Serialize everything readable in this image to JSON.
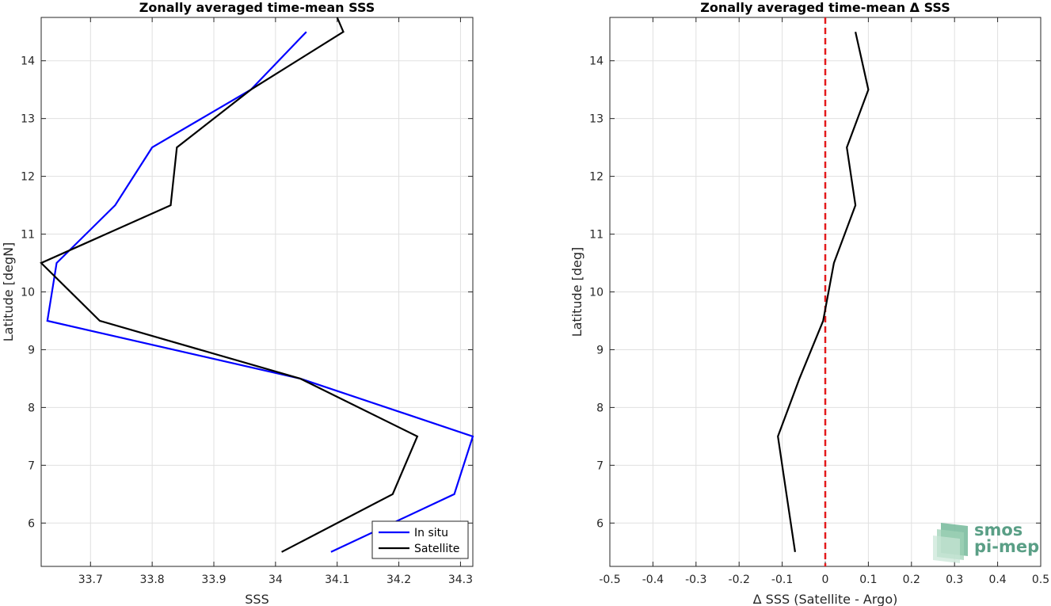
{
  "chart_data": [
    {
      "type": "line",
      "title": "Zonally averaged time-mean SSS",
      "xlabel": "SSS",
      "ylabel": "Latitude [degN]",
      "xlim": [
        33.62,
        34.32
      ],
      "ylim": [
        5.25,
        14.75
      ],
      "xticks": [
        33.7,
        33.8,
        33.9,
        34.0,
        34.1,
        34.2,
        34.3
      ],
      "xtick_labels": [
        "33.7",
        "33.8",
        "33.9",
        "34",
        "34.1",
        "34.2",
        "34.3"
      ],
      "yticks": [
        6,
        7,
        8,
        9,
        10,
        11,
        12,
        13,
        14
      ],
      "ytick_labels": [
        "6",
        "7",
        "8",
        "9",
        "10",
        "11",
        "12",
        "13",
        "14"
      ],
      "grid": true,
      "legend_position": "bottom-right",
      "series": [
        {
          "name": "In situ",
          "color": "#0000ff",
          "points": [
            [
              34.09,
              5.5
            ],
            [
              34.29,
              6.5
            ],
            [
              34.32,
              7.5
            ],
            [
              34.04,
              8.5
            ],
            [
              33.63,
              9.5
            ],
            [
              33.645,
              10.5
            ],
            [
              33.74,
              11.5
            ],
            [
              33.8,
              12.5
            ],
            [
              33.96,
              13.5
            ],
            [
              34.05,
              14.5
            ]
          ]
        },
        {
          "name": "Satellite",
          "color": "#000000",
          "points": [
            [
              34.01,
              5.5
            ],
            [
              34.19,
              6.5
            ],
            [
              34.23,
              7.5
            ],
            [
              34.04,
              8.5
            ],
            [
              33.715,
              9.5
            ],
            [
              33.62,
              10.5
            ],
            [
              33.83,
              11.5
            ],
            [
              33.84,
              12.5
            ],
            [
              33.96,
              13.5
            ],
            [
              34.11,
              14.5
            ],
            [
              34.1,
              14.75
            ]
          ]
        }
      ]
    },
    {
      "type": "line",
      "title": "Zonally averaged time-mean Δ SSS",
      "xlabel": "Δ SSS (Satellite - Argo)",
      "ylabel": "Latitude [deg]",
      "xlim": [
        -0.5,
        0.5
      ],
      "ylim": [
        5.25,
        14.75
      ],
      "xticks": [
        -0.5,
        -0.4,
        -0.3,
        -0.2,
        -0.1,
        0,
        0.1,
        0.2,
        0.3,
        0.4,
        0.5
      ],
      "xtick_labels": [
        "-0.5",
        "-0.4",
        "-0.3",
        "-0.2",
        "-0.1",
        "0",
        "0.1",
        "0.2",
        "0.3",
        "0.4",
        "0.5"
      ],
      "yticks": [
        6,
        7,
        8,
        9,
        10,
        11,
        12,
        13,
        14
      ],
      "ytick_labels": [
        "6",
        "7",
        "8",
        "9",
        "10",
        "11",
        "12",
        "13",
        "14"
      ],
      "grid": true,
      "reference_line": {
        "x": 0,
        "color": "#e31a1c",
        "style": "dashed"
      },
      "series": [
        {
          "name": "",
          "color": "#000000",
          "points": [
            [
              -0.07,
              5.5
            ],
            [
              -0.09,
              6.5
            ],
            [
              -0.11,
              7.5
            ],
            [
              -0.06,
              8.5
            ],
            [
              -0.005,
              9.5
            ],
            [
              0.02,
              10.5
            ],
            [
              0.07,
              11.5
            ],
            [
              0.05,
              12.5
            ],
            [
              0.1,
              13.5
            ],
            [
              0.07,
              14.5
            ]
          ]
        }
      ]
    }
  ],
  "logo": {
    "line1": "smos",
    "line2": "pi-mep"
  }
}
